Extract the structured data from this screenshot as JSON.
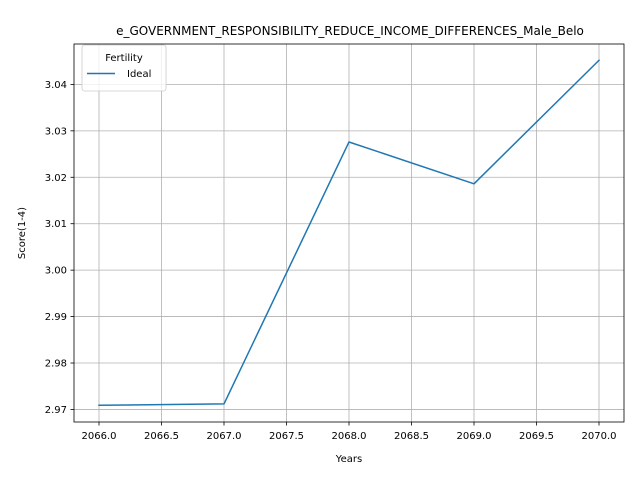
{
  "chart_data": {
    "type": "line",
    "title": "e_GOVERNMENT_RESPONSIBILITY_REDUCE_INCOME_DIFFERENCES_Male_Belo",
    "xlabel": "Years",
    "ylabel": "Score(1-4)",
    "xlim": [
      2065.8,
      2070.2
    ],
    "ylim": [
      2.9673,
      3.0487
    ],
    "xticks": [
      2066.0,
      2066.5,
      2067.0,
      2067.5,
      2068.0,
      2068.5,
      2069.0,
      2069.5,
      2070.0
    ],
    "xtick_labels": [
      "2066.0",
      "2066.5",
      "2067.0",
      "2067.5",
      "2068.0",
      "2068.5",
      "2069.0",
      "2069.5",
      "2070.0"
    ],
    "yticks": [
      2.97,
      2.98,
      2.99,
      3.0,
      3.01,
      3.02,
      3.03,
      3.04
    ],
    "ytick_labels": [
      "2.97",
      "2.98",
      "2.99",
      "3.00",
      "3.01",
      "3.02",
      "3.03",
      "3.04"
    ],
    "grid": true,
    "legend": {
      "title": "Fertility",
      "position": "top-left"
    },
    "series": [
      {
        "name": "Ideal",
        "color": "#1f77b4",
        "x": [
          2066,
          2067,
          2068,
          2069,
          2070
        ],
        "y": [
          2.9709,
          2.9712,
          3.0276,
          3.0186,
          3.0452
        ]
      }
    ]
  }
}
